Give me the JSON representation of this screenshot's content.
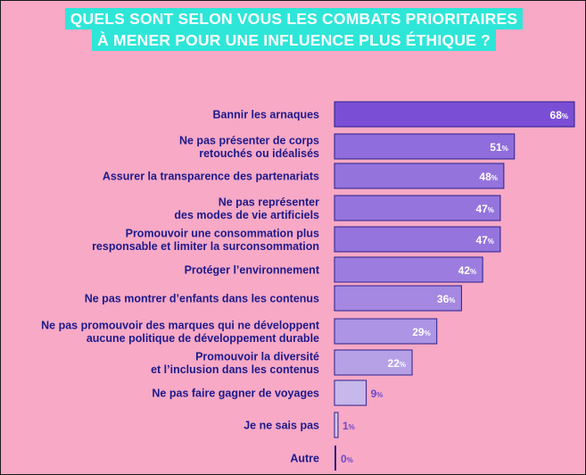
{
  "chart_data": {
    "type": "bar",
    "orientation": "horizontal",
    "title": [
      "QUELS SONT SELON VOUS LES COMBATS PRIORITAIRES",
      "À MENER POUR UNE INFLUENCE PLUS ÉTHIQUE ?"
    ],
    "categories": [
      [
        "Bannir les arnaques"
      ],
      [
        "Ne pas présenter de corps",
        "retouchés ou idéalisés"
      ],
      [
        "Assurer la transparence des partenariats"
      ],
      [
        "Ne pas représenter",
        "des modes de vie artificiels"
      ],
      [
        "Promouvoir une consommation plus",
        "responsable et limiter la surconsommation"
      ],
      [
        "Protéger l’environnement"
      ],
      [
        "Ne pas montrer d’enfants dans les contenus"
      ],
      [
        "Ne pas promouvoir des marques qui ne développent",
        "aucune politique de développement durable"
      ],
      [
        "Promouvoir la diversité",
        "et l’inclusion dans les contenus"
      ],
      [
        "Ne pas faire gagner de voyages"
      ],
      [
        "Je ne sais pas"
      ],
      [
        "Autre"
      ]
    ],
    "values": [
      68,
      51,
      48,
      47,
      47,
      42,
      36,
      29,
      22,
      9,
      1,
      0
    ],
    "value_suffix": "%",
    "xlim": [
      0,
      100
    ],
    "grid": false,
    "legend": "none"
  },
  "colors": {
    "background": "#f7a9c6",
    "title_bg": "#2ee6d8",
    "title_text": "#ffffff",
    "label_text": "#1e1a8a",
    "bar_border": "#2a1e8c",
    "bar_darkest": "#7a4fd6",
    "bar_lightest": "#d3c8ee",
    "value_light": "#ffffff",
    "value_dark": "#6b49c9"
  }
}
